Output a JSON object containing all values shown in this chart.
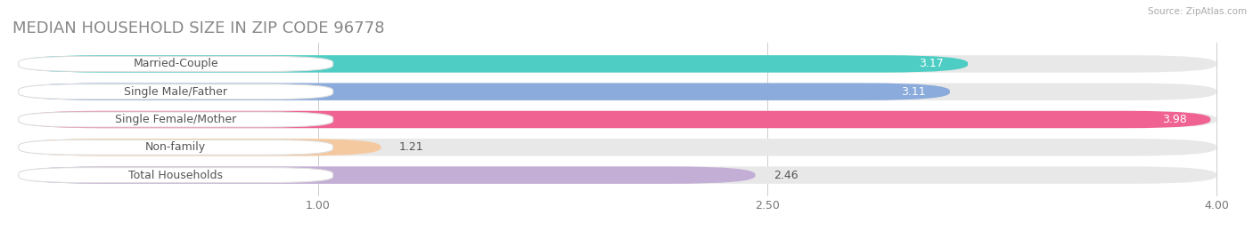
{
  "title": "MEDIAN HOUSEHOLD SIZE IN ZIP CODE 96778",
  "source": "Source: ZipAtlas.com",
  "categories": [
    "Married-Couple",
    "Single Male/Father",
    "Single Female/Mother",
    "Non-family",
    "Total Households"
  ],
  "values": [
    3.17,
    3.11,
    3.98,
    1.21,
    2.46
  ],
  "bar_colors": [
    "#4ecdc4",
    "#8aabdb",
    "#f06292",
    "#f5c9a0",
    "#c3aed6"
  ],
  "background_color": "#ffffff",
  "bar_bg_color": "#e8e8e8",
  "xlim_start": 0.0,
  "xlim_end": 4.0,
  "xticks": [
    1.0,
    2.5,
    4.0
  ],
  "label_color": "#555555",
  "value_color_white": "#ffffff",
  "value_color_dark": "#555555",
  "title_color": "#888888",
  "source_color": "#aaaaaa",
  "title_fontsize": 13,
  "label_fontsize": 9,
  "value_fontsize": 9,
  "tick_fontsize": 9,
  "bar_height": 0.62,
  "bar_gap": 0.38
}
